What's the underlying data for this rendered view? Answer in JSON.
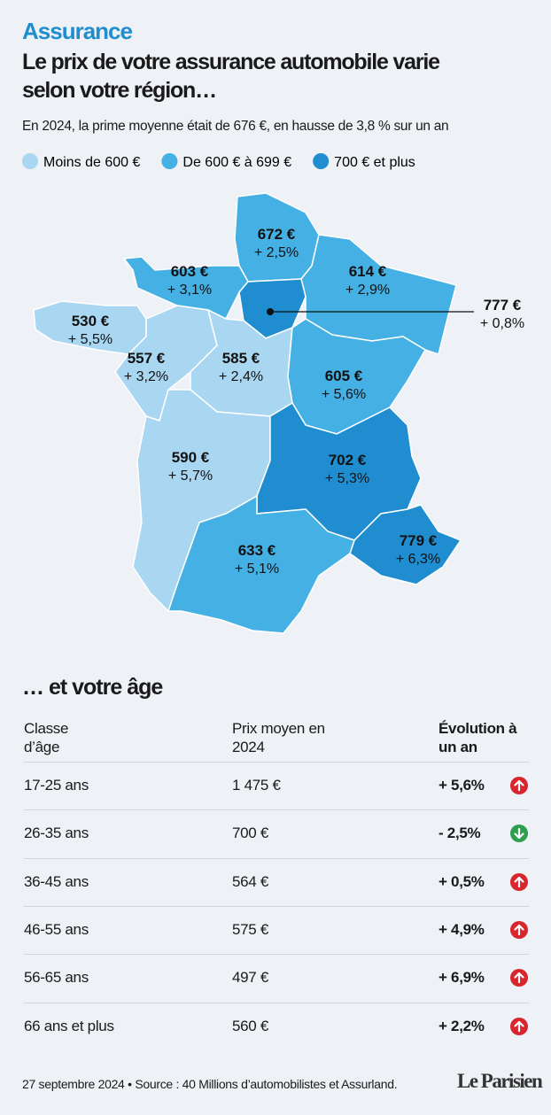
{
  "header": {
    "kicker": "Assurance",
    "title_lines": [
      "Le prix de votre assurance automobile varie",
      "selon votre région…"
    ],
    "subtitle": "En 2024, la prime moyenne était de 676 €, en hausse de 3,8 % sur un an"
  },
  "legend": [
    {
      "label": "Moins de 600 €",
      "color": "#a9d6f0"
    },
    {
      "label": "De 600 € à 699 €",
      "color": "#45b0e3"
    },
    {
      "label": "700 € et plus",
      "color": "#1f8dcf"
    }
  ],
  "regions": [
    {
      "price": "672 €",
      "change": "+ 2,5%",
      "legend": 1
    },
    {
      "price": "603 €",
      "change": "+ 3,1%",
      "legend": 1
    },
    {
      "price": "614 €",
      "change": "+ 2,9%",
      "legend": 1
    },
    {
      "price": "777 €",
      "change": "+ 0,8%",
      "legend": 2
    },
    {
      "price": "530 €",
      "change": "+ 5,5%",
      "legend": 0
    },
    {
      "price": "557 €",
      "change": "+ 3,2%",
      "legend": 0
    },
    {
      "price": "585 €",
      "change": "+ 2,4%",
      "legend": 0
    },
    {
      "price": "605 €",
      "change": "+ 5,6%",
      "legend": 1
    },
    {
      "price": "590 €",
      "change": "+ 5,7%",
      "legend": 0
    },
    {
      "price": "702 €",
      "change": "+ 5,3%",
      "legend": 2
    },
    {
      "price": "779 €",
      "change": "+ 6,3%",
      "legend": 2
    },
    {
      "price": "633 €",
      "change": "+ 5,1%",
      "legend": 1
    }
  ],
  "table": {
    "title": "… et votre âge",
    "headers": [
      "Classe d’âge",
      "Prix moyen en 2024",
      "Évolution à un an"
    ],
    "rows": [
      [
        "17-25 ans",
        "1 475 €",
        "+ 5,6%",
        "up"
      ],
      [
        "26-35 ans",
        "700 €",
        "- 2,5%",
        "down"
      ],
      [
        "36-45 ans",
        "564 €",
        "+ 0,5%",
        "up"
      ],
      [
        "46-55 ans",
        "575 €",
        "+ 4,9%",
        "up"
      ],
      [
        "56-65 ans",
        "497 €",
        "+ 6,9%",
        "up"
      ],
      [
        "66 ans et plus",
        "560 €",
        "+ 2,2%",
        "up"
      ]
    ]
  },
  "footer": {
    "source": "27 septembre 2024 • Source : 40 Millions d’automobilistes et Assurland.",
    "logo": "Le Parisien"
  }
}
